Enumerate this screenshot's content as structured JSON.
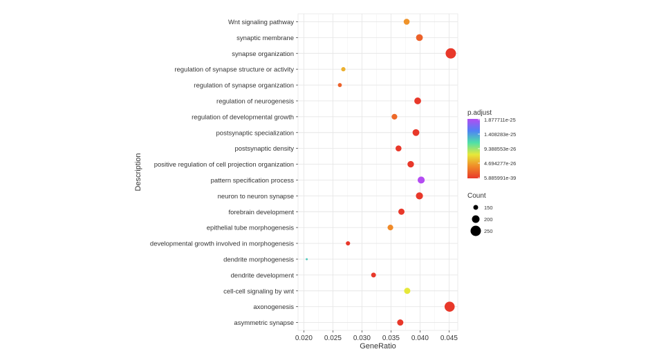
{
  "chart_data": {
    "type": "scatter",
    "xlabel": "GeneRatio",
    "ylabel": "Description",
    "xlim": [
      0.019,
      0.0465
    ],
    "x_ticks": [
      "0.020",
      "0.025",
      "0.030",
      "0.035",
      "0.040",
      "0.045"
    ],
    "x_tick_values": [
      0.02,
      0.025,
      0.03,
      0.035,
      0.04,
      0.045
    ],
    "grid": true,
    "points": [
      {
        "label": "Wnt signaling pathway",
        "x": 0.0377,
        "p_norm": 0.78,
        "count": 170
      },
      {
        "label": "synaptic membrane",
        "x": 0.0399,
        "p_norm": 0.9,
        "count": 185
      },
      {
        "label": "synapse organization",
        "x": 0.0453,
        "p_norm": 1.0,
        "count": 250
      },
      {
        "label": "regulation of synapse structure or activity",
        "x": 0.0268,
        "p_norm": 0.72,
        "count": 140
      },
      {
        "label": "regulation of synapse organization",
        "x": 0.0262,
        "p_norm": 0.9,
        "count": 135
      },
      {
        "label": "regulation of neurogenesis",
        "x": 0.0396,
        "p_norm": 1.0,
        "count": 185
      },
      {
        "label": "regulation of developmental growth",
        "x": 0.0356,
        "p_norm": 0.88,
        "count": 165
      },
      {
        "label": "postsynaptic specialization",
        "x": 0.0393,
        "p_norm": 1.0,
        "count": 185
      },
      {
        "label": "postsynaptic density",
        "x": 0.0363,
        "p_norm": 1.0,
        "count": 170
      },
      {
        "label": "positive regulation of cell projection organization",
        "x": 0.0384,
        "p_norm": 1.0,
        "count": 180
      },
      {
        "label": "pattern specification process",
        "x": 0.0402,
        "p_norm": 0.0,
        "count": 190
      },
      {
        "label": "neuron to neuron synapse",
        "x": 0.0399,
        "p_norm": 1.0,
        "count": 190
      },
      {
        "label": "forebrain development",
        "x": 0.0368,
        "p_norm": 1.0,
        "count": 175
      },
      {
        "label": "epithelial tube morphogenesis",
        "x": 0.0349,
        "p_norm": 0.8,
        "count": 165
      },
      {
        "label": "developmental growth involved in morphogenesis",
        "x": 0.0276,
        "p_norm": 1.0,
        "count": 140
      },
      {
        "label": "dendrite morphogenesis",
        "x": 0.0205,
        "p_norm": 0.35,
        "count": 100
      },
      {
        "label": "dendrite development",
        "x": 0.032,
        "p_norm": 1.0,
        "count": 150
      },
      {
        "label": "cell-cell signaling by wnt",
        "x": 0.0378,
        "p_norm": 0.6,
        "count": 175
      },
      {
        "label": "axonogenesis",
        "x": 0.0451,
        "p_norm": 1.0,
        "count": 245
      },
      {
        "label": "asymmetric synapse",
        "x": 0.0366,
        "p_norm": 1.0,
        "count": 175
      }
    ],
    "legend_color": {
      "title": "p.adjust",
      "labels": [
        "1.877711e-25",
        "1.408283e-25",
        "9.388553e-26",
        "4.694277e-26",
        "5.885991e-39"
      ],
      "colors": [
        "#b44cf2",
        "#4f82f5",
        "#4fe0a8",
        "#e6e83a",
        "#f08a28",
        "#e8382a"
      ]
    },
    "legend_size": {
      "title": "Count",
      "labels": [
        "150",
        "200",
        "250"
      ],
      "values": [
        150,
        200,
        250
      ]
    }
  }
}
